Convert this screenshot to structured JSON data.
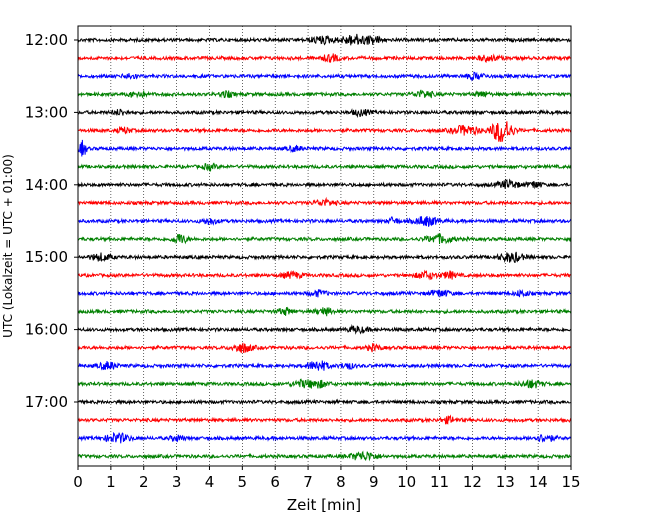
{
  "chart_data": {
    "type": "line",
    "title": "",
    "xlabel": "Zeit  [min]",
    "ylabel": "UTC (Lokalzeit = UTC + 01:00)",
    "xlim": [
      0,
      15
    ],
    "x_ticks": [
      "0",
      "1",
      "2",
      "3",
      "4",
      "5",
      "6",
      "7",
      "8",
      "9",
      "10",
      "11",
      "12",
      "13",
      "14",
      "15"
    ],
    "y_ticks": [
      "12:00",
      "13:00",
      "14:00",
      "15:00",
      "16:00",
      "17:00"
    ],
    "grid": "vertical-dotted",
    "trace_colors": [
      "#000000",
      "#ff0000",
      "#0000ff",
      "#008000"
    ],
    "traces": [
      {
        "start": "12:00",
        "bursts": [
          [
            7.4,
            0.35,
            1.5
          ],
          [
            8.4,
            0.4,
            2.2
          ],
          [
            9.0,
            0.25,
            1.4
          ]
        ]
      },
      {
        "start": "12:15",
        "bursts": [
          [
            7.7,
            0.25,
            1.5
          ],
          [
            12.5,
            0.3,
            1.2
          ]
        ]
      },
      {
        "start": "12:30",
        "bursts": [
          [
            1.6,
            0.2,
            1.1
          ],
          [
            12.1,
            0.3,
            1.2
          ]
        ]
      },
      {
        "start": "12:45",
        "bursts": [
          [
            1.8,
            0.25,
            1.3
          ],
          [
            4.5,
            0.2,
            1.2
          ],
          [
            10.5,
            0.3,
            1.4
          ],
          [
            12.3,
            0.2,
            1.1
          ]
        ]
      },
      {
        "start": "13:00",
        "bursts": [
          [
            1.3,
            0.2,
            1.2
          ],
          [
            8.6,
            0.25,
            1.3
          ]
        ]
      },
      {
        "start": "13:15",
        "bursts": [
          [
            1.4,
            0.2,
            1.2
          ],
          [
            11.8,
            0.4,
            2.0
          ],
          [
            12.9,
            0.3,
            5.5
          ]
        ]
      },
      {
        "start": "13:30",
        "bursts": [
          [
            0.15,
            0.1,
            3.5
          ],
          [
            6.6,
            0.2,
            1.1
          ]
        ]
      },
      {
        "start": "13:45",
        "bursts": [
          [
            4.0,
            0.2,
            1.2
          ]
        ]
      },
      {
        "start": "14:00",
        "bursts": [
          [
            13.1,
            0.3,
            1.8
          ],
          [
            13.9,
            0.2,
            1.4
          ]
        ]
      },
      {
        "start": "14:15",
        "bursts": [
          [
            7.5,
            0.3,
            1.3
          ]
        ]
      },
      {
        "start": "14:30",
        "bursts": [
          [
            4.0,
            0.25,
            1.2
          ],
          [
            9.6,
            0.15,
            1.4
          ],
          [
            10.6,
            0.35,
            2.0
          ]
        ]
      },
      {
        "start": "14:45",
        "bursts": [
          [
            3.1,
            0.2,
            2.2
          ],
          [
            11.0,
            0.4,
            1.8
          ]
        ]
      },
      {
        "start": "15:00",
        "bursts": [
          [
            0.7,
            0.3,
            1.5
          ],
          [
            13.2,
            0.35,
            2.0
          ]
        ]
      },
      {
        "start": "15:15",
        "bursts": [
          [
            6.5,
            0.3,
            1.3
          ],
          [
            10.6,
            0.3,
            1.6
          ],
          [
            11.3,
            0.2,
            1.5
          ]
        ]
      },
      {
        "start": "15:30",
        "bursts": [
          [
            7.3,
            0.25,
            1.2
          ],
          [
            11.0,
            0.3,
            1.4
          ],
          [
            13.5,
            0.2,
            1.3
          ]
        ]
      },
      {
        "start": "15:45",
        "bursts": [
          [
            6.3,
            0.2,
            1.4
          ],
          [
            7.5,
            0.25,
            1.5
          ]
        ]
      },
      {
        "start": "16:00",
        "bursts": [
          [
            8.5,
            0.3,
            1.3
          ]
        ]
      },
      {
        "start": "16:15",
        "bursts": [
          [
            5.0,
            0.3,
            2.0
          ],
          [
            9.0,
            0.2,
            1.3
          ]
        ]
      },
      {
        "start": "16:30",
        "bursts": [
          [
            0.9,
            0.25,
            1.6
          ],
          [
            7.3,
            0.3,
            2.2
          ],
          [
            8.2,
            0.2,
            1.3
          ]
        ]
      },
      {
        "start": "16:45",
        "bursts": [
          [
            6.8,
            0.3,
            1.4
          ],
          [
            7.3,
            0.3,
            1.5
          ],
          [
            13.8,
            0.3,
            1.6
          ]
        ]
      },
      {
        "start": "17:00",
        "bursts": []
      },
      {
        "start": "17:15",
        "bursts": [
          [
            11.3,
            0.25,
            1.3
          ]
        ]
      },
      {
        "start": "17:30",
        "bursts": [
          [
            1.2,
            0.35,
            2.0
          ],
          [
            3.0,
            0.2,
            1.2
          ],
          [
            14.2,
            0.3,
            1.5
          ]
        ]
      },
      {
        "start": "17:45",
        "bursts": [
          [
            8.7,
            0.4,
            1.8
          ]
        ]
      }
    ]
  }
}
